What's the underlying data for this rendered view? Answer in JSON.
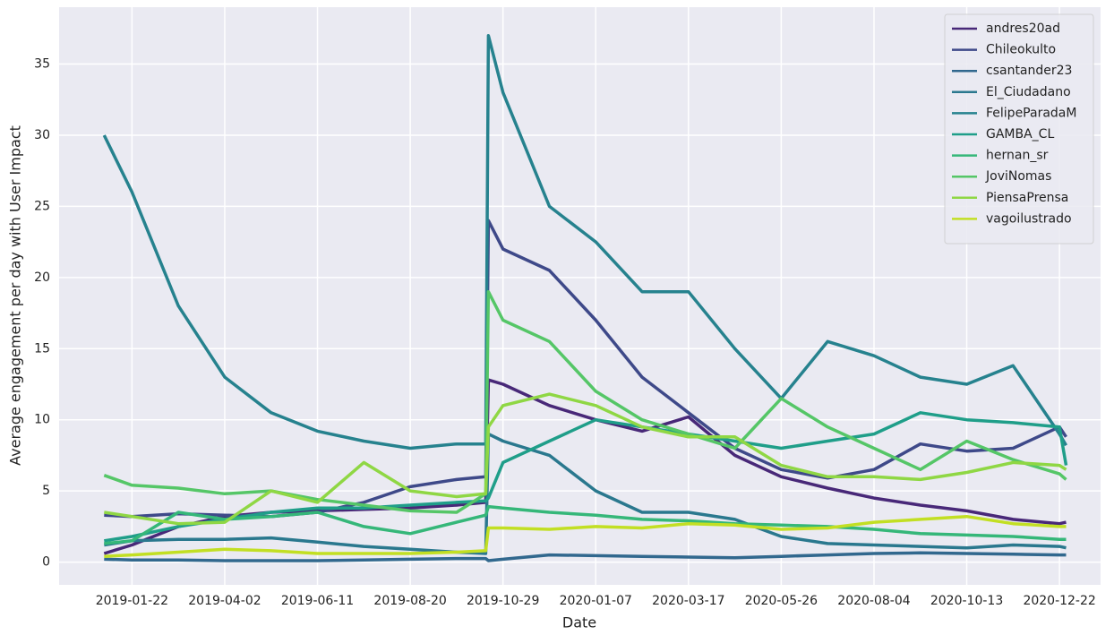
{
  "chart_data": {
    "type": "line",
    "xlabel": "Date",
    "ylabel": "Average engagement per day with User Impact",
    "x": [
      "2019-01-01",
      "2019-01-22",
      "2019-02-26",
      "2019-04-02",
      "2019-05-07",
      "2019-06-11",
      "2019-07-16",
      "2019-08-20",
      "2019-09-24",
      "2019-10-16",
      "2019-10-18",
      "2019-10-29",
      "2019-12-03",
      "2020-01-07",
      "2020-02-11",
      "2020-03-17",
      "2020-04-21",
      "2020-05-26",
      "2020-06-30",
      "2020-08-04",
      "2020-09-08",
      "2020-10-13",
      "2020-11-17",
      "2020-12-22",
      "2020-12-27"
    ],
    "series": [
      {
        "name": "andres20ad",
        "color": "#482878",
        "values": [
          0.6,
          1.2,
          2.5,
          3.2,
          3.5,
          3.6,
          3.7,
          3.8,
          4.0,
          4.2,
          12.8,
          12.5,
          11,
          10,
          9.2,
          10.2,
          7.5,
          6,
          5.2,
          4.5,
          4,
          3.6,
          3,
          2.7,
          2.8
        ]
      },
      {
        "name": "Chileokulto",
        "color": "#3e4989",
        "values": [
          3.3,
          3.2,
          3.4,
          3.3,
          3.2,
          3.5,
          4.2,
          5.3,
          5.8,
          6.0,
          24,
          22,
          20.5,
          17,
          13,
          10.5,
          8,
          6.5,
          5.9,
          6.5,
          8.3,
          7.8,
          8,
          9.5,
          8.8
        ]
      },
      {
        "name": "csantander23",
        "color": "#31688e",
        "values": [
          0.2,
          0.15,
          0.15,
          0.1,
          0.1,
          0.1,
          0.15,
          0.2,
          0.25,
          0.25,
          0.1,
          0.2,
          0.5,
          0.45,
          0.4,
          0.35,
          0.3,
          0.4,
          0.5,
          0.6,
          0.65,
          0.6,
          0.55,
          0.5,
          0.5
        ]
      },
      {
        "name": "El_Ciudadano",
        "color": "#2a788e",
        "values": [
          1.2,
          1.5,
          1.6,
          1.6,
          1.7,
          1.4,
          1.1,
          0.9,
          0.7,
          0.6,
          9,
          8.5,
          7.5,
          5,
          3.5,
          3.5,
          3,
          1.8,
          1.3,
          1.2,
          1.1,
          1,
          1.2,
          1.1,
          1
        ]
      },
      {
        "name": "FelipeParadaM",
        "color": "#26828e",
        "values": [
          30,
          26,
          18,
          13,
          10.5,
          9.2,
          8.5,
          8,
          8.3,
          8.3,
          37,
          33,
          25,
          22.5,
          19,
          19,
          15,
          11.5,
          15.5,
          14.5,
          13,
          12.5,
          13.8,
          9,
          8.2
        ]
      },
      {
        "name": "GAMBA_CL",
        "color": "#1f9e89",
        "values": [
          1.5,
          1.8,
          2.5,
          3,
          3.5,
          3.8,
          3.8,
          4,
          4.2,
          4.3,
          4.5,
          7,
          8.5,
          10,
          9.5,
          9,
          8.5,
          8,
          8.5,
          9,
          10.5,
          10,
          9.8,
          9.5,
          6.8
        ]
      },
      {
        "name": "hernan_sr",
        "color": "#35b779",
        "values": [
          1.3,
          1.5,
          3.5,
          3,
          3.2,
          3.5,
          2.5,
          2,
          2.8,
          3.3,
          3.9,
          3.8,
          3.5,
          3.3,
          3,
          2.9,
          2.7,
          2.6,
          2.5,
          2.3,
          2,
          1.9,
          1.8,
          1.6,
          1.6
        ]
      },
      {
        "name": "JoviNomas",
        "color": "#55c667",
        "values": [
          6.1,
          5.4,
          5.2,
          4.8,
          5,
          4.4,
          4,
          3.6,
          3.5,
          4.8,
          19,
          17,
          15.5,
          12,
          10,
          9,
          8,
          11.5,
          9.5,
          8,
          6.5,
          8.5,
          7.2,
          6.2,
          5.8
        ]
      },
      {
        "name": "PiensaPrensa",
        "color": "#8fd744",
        "values": [
          3.5,
          3.2,
          2.7,
          2.8,
          5,
          4.2,
          7,
          5,
          4.6,
          4.8,
          9.5,
          11,
          11.8,
          11,
          9.5,
          8.8,
          8.8,
          6.8,
          6,
          6,
          5.8,
          6.3,
          7,
          6.8,
          6.5
        ]
      },
      {
        "name": "vagoilustrado",
        "color": "#c2df23",
        "values": [
          0.4,
          0.5,
          0.7,
          0.9,
          0.8,
          0.6,
          0.6,
          0.6,
          0.7,
          0.8,
          2.4,
          2.4,
          2.3,
          2.5,
          2.4,
          2.7,
          2.6,
          2.3,
          2.4,
          2.8,
          3,
          3.2,
          2.7,
          2.5,
          2.5
        ]
      }
    ],
    "xlim": [
      "2018-11-28",
      "2021-01-22"
    ],
    "xticks": [
      "2019-01-22",
      "2019-04-02",
      "2019-06-11",
      "2019-08-20",
      "2019-10-29",
      "2020-01-07",
      "2020-03-17",
      "2020-05-26",
      "2020-08-04",
      "2020-10-13",
      "2020-12-22"
    ],
    "ylim": [
      -1.6,
      39.0
    ],
    "yticks": [
      0,
      5,
      10,
      15,
      20,
      25,
      30,
      35
    ],
    "grid": true,
    "legend": "upper right"
  }
}
